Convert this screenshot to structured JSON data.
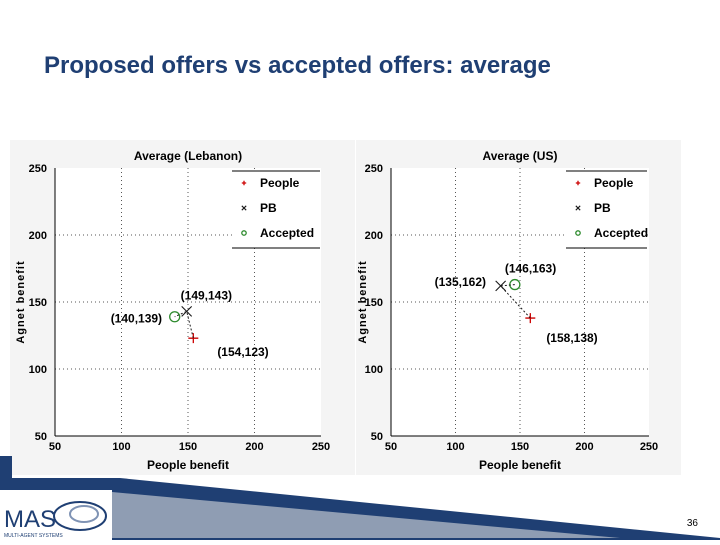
{
  "slide": {
    "title": "Proposed offers vs accepted offers: average",
    "page_number": "36",
    "logo_text": "MAS",
    "logo_subtext": "MULTI-AGENT SYSTEMS",
    "colors": {
      "title": "#1f3f73",
      "navy": "#1f3f73",
      "people": "#cc0000",
      "pb": "#1a1a1a",
      "accepted": "#2e8b2e"
    }
  },
  "chart_data": [
    {
      "type": "scatter",
      "title": "Average (Lebanon)",
      "xlabel": "People benefit",
      "ylabel": "Agnet benefit",
      "xlim": [
        50,
        250
      ],
      "ylim": [
        50,
        250
      ],
      "xticks": [
        "50",
        "100",
        "150",
        "200",
        "250"
      ],
      "yticks": [
        "50",
        "100",
        "150",
        "200",
        "250"
      ],
      "grid": true,
      "legend_position": "top-right",
      "series": [
        {
          "name": "People",
          "marker": "plus",
          "color": "#cc0000",
          "x": [
            154
          ],
          "y": [
            123
          ],
          "label": "(154,123)"
        },
        {
          "name": "PB",
          "marker": "x",
          "color": "#1a1a1a",
          "x": [
            149
          ],
          "y": [
            143
          ],
          "label": "(149,143)"
        },
        {
          "name": "Accepted",
          "marker": "circle",
          "color": "#2e8b2e",
          "x": [
            140
          ],
          "y": [
            139
          ],
          "label": "(140,139)"
        }
      ]
    },
    {
      "type": "scatter",
      "title": "Average (US)",
      "xlabel": "People benefit",
      "ylabel": "Agnet benefit",
      "xlim": [
        50,
        250
      ],
      "ylim": [
        50,
        250
      ],
      "xticks": [
        "50",
        "100",
        "150",
        "200",
        "250"
      ],
      "yticks": [
        "50",
        "100",
        "150",
        "200",
        "250"
      ],
      "grid": true,
      "legend_position": "top-right",
      "series": [
        {
          "name": "People",
          "marker": "plus",
          "color": "#cc0000",
          "x": [
            158
          ],
          "y": [
            138
          ],
          "label": "(158,138)"
        },
        {
          "name": "PB",
          "marker": "x",
          "color": "#1a1a1a",
          "x": [
            135
          ],
          "y": [
            162
          ],
          "label": "(135,162)"
        },
        {
          "name": "Accepted",
          "marker": "circle",
          "color": "#2e8b2e",
          "x": [
            146
          ],
          "y": [
            163
          ],
          "label": "(146,163)"
        }
      ]
    }
  ]
}
